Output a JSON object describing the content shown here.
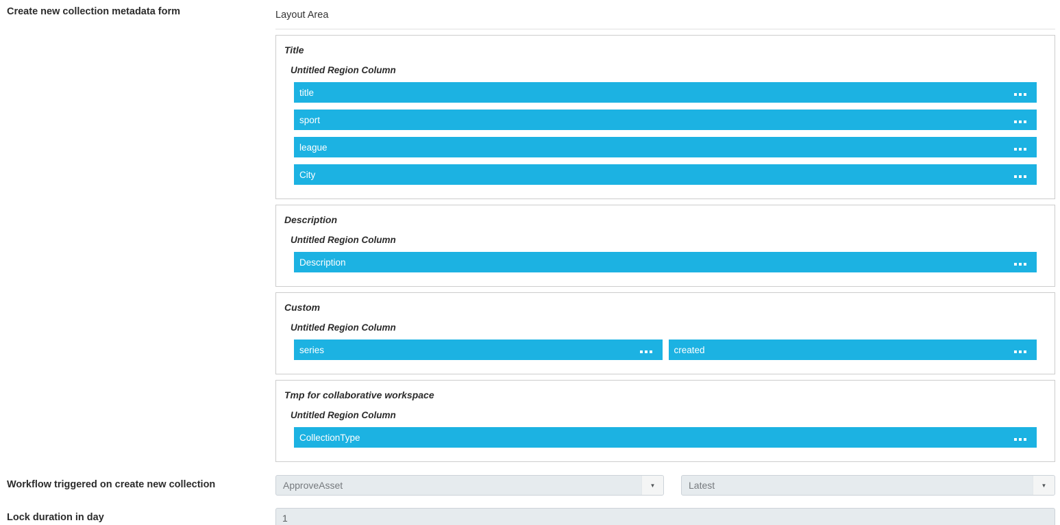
{
  "header": {
    "form_label": "Create new collection metadata form",
    "layout_area_label": "Layout Area"
  },
  "regions": [
    {
      "title": "Title",
      "column_label": "Untitled Region Column",
      "fields": [
        {
          "label": "title"
        },
        {
          "label": "sport"
        },
        {
          "label": "league"
        },
        {
          "label": "City"
        }
      ]
    },
    {
      "title": "Description",
      "column_label": "Untitled Region Column",
      "fields": [
        {
          "label": "Description"
        }
      ]
    },
    {
      "title": "Custom",
      "column_label": "Untitled Region Column",
      "fields": [
        {
          "label": "series"
        },
        {
          "label": "created"
        }
      ]
    },
    {
      "title": "Tmp for collaborative workspace",
      "column_label": "Untitled Region Column",
      "fields": [
        {
          "label": "CollectionType"
        }
      ]
    }
  ],
  "workflow": {
    "label": "Workflow triggered on create new collection",
    "workflow_select_value": "ApproveAsset",
    "version_select_value": "Latest"
  },
  "lock": {
    "label": "Lock duration in day",
    "value": "1"
  },
  "colors": {
    "field_bar_blue": "#1cb2e2",
    "select_background": "#e6ebee",
    "box_border": "#cccccc"
  }
}
